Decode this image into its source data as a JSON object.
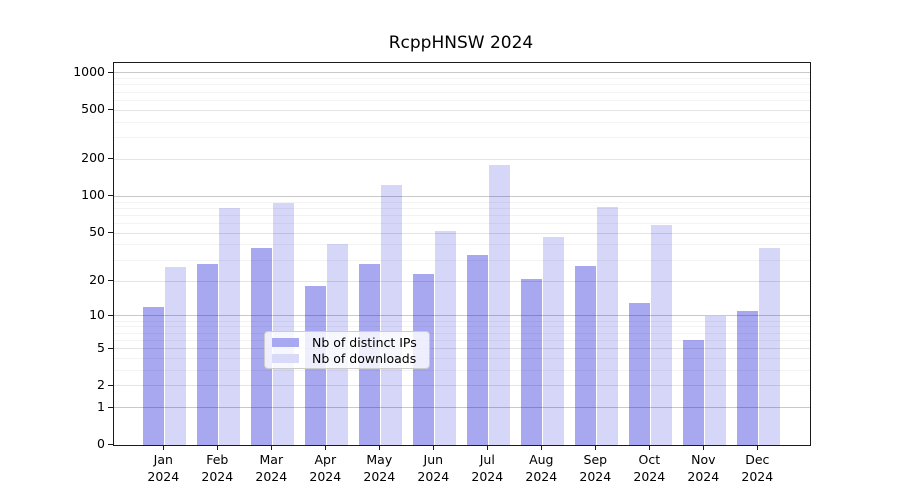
{
  "chart_data": {
    "type": "bar",
    "title": "RcppHNSW 2024",
    "categories": [
      "Jan",
      "Feb",
      "Mar",
      "Apr",
      "May",
      "Jun",
      "Jul",
      "Aug",
      "Sep",
      "Oct",
      "Nov",
      "Dec"
    ],
    "year_label": "2024",
    "series": [
      {
        "name": "Nb of distinct IPs",
        "values": [
          12,
          28,
          38,
          18,
          28,
          23,
          33,
          21,
          27,
          13,
          6,
          11
        ]
      },
      {
        "name": "Nb of downloads",
        "values": [
          26,
          80,
          89,
          41,
          125,
          52,
          180,
          47,
          82,
          58,
          10,
          38
        ]
      }
    ],
    "xlabel": "",
    "ylabel": "",
    "y_scale": "log1p",
    "y_ticks": [
      0,
      1,
      2,
      5,
      10,
      20,
      50,
      100,
      200,
      500,
      1000
    ],
    "ylim": [
      0,
      1200
    ],
    "grid": "horizontal, major and minor",
    "legend_position": "lower center inside plot"
  },
  "colors": {
    "bar_ips": "#a9a9f2",
    "bar_downloads": "#d9d9f8",
    "bar_ips_rgba": "rgba(0,0,214,0.34)",
    "bar_downloads_rgba": "rgba(3,3,210,0.16)",
    "grid_major": "#c9c9c9",
    "grid_mid": "#e4e4e4",
    "grid_minor": "#f3f3f3",
    "axis": "#1a1a1a",
    "legend_border": "#cccccc",
    "text": "#000000"
  }
}
